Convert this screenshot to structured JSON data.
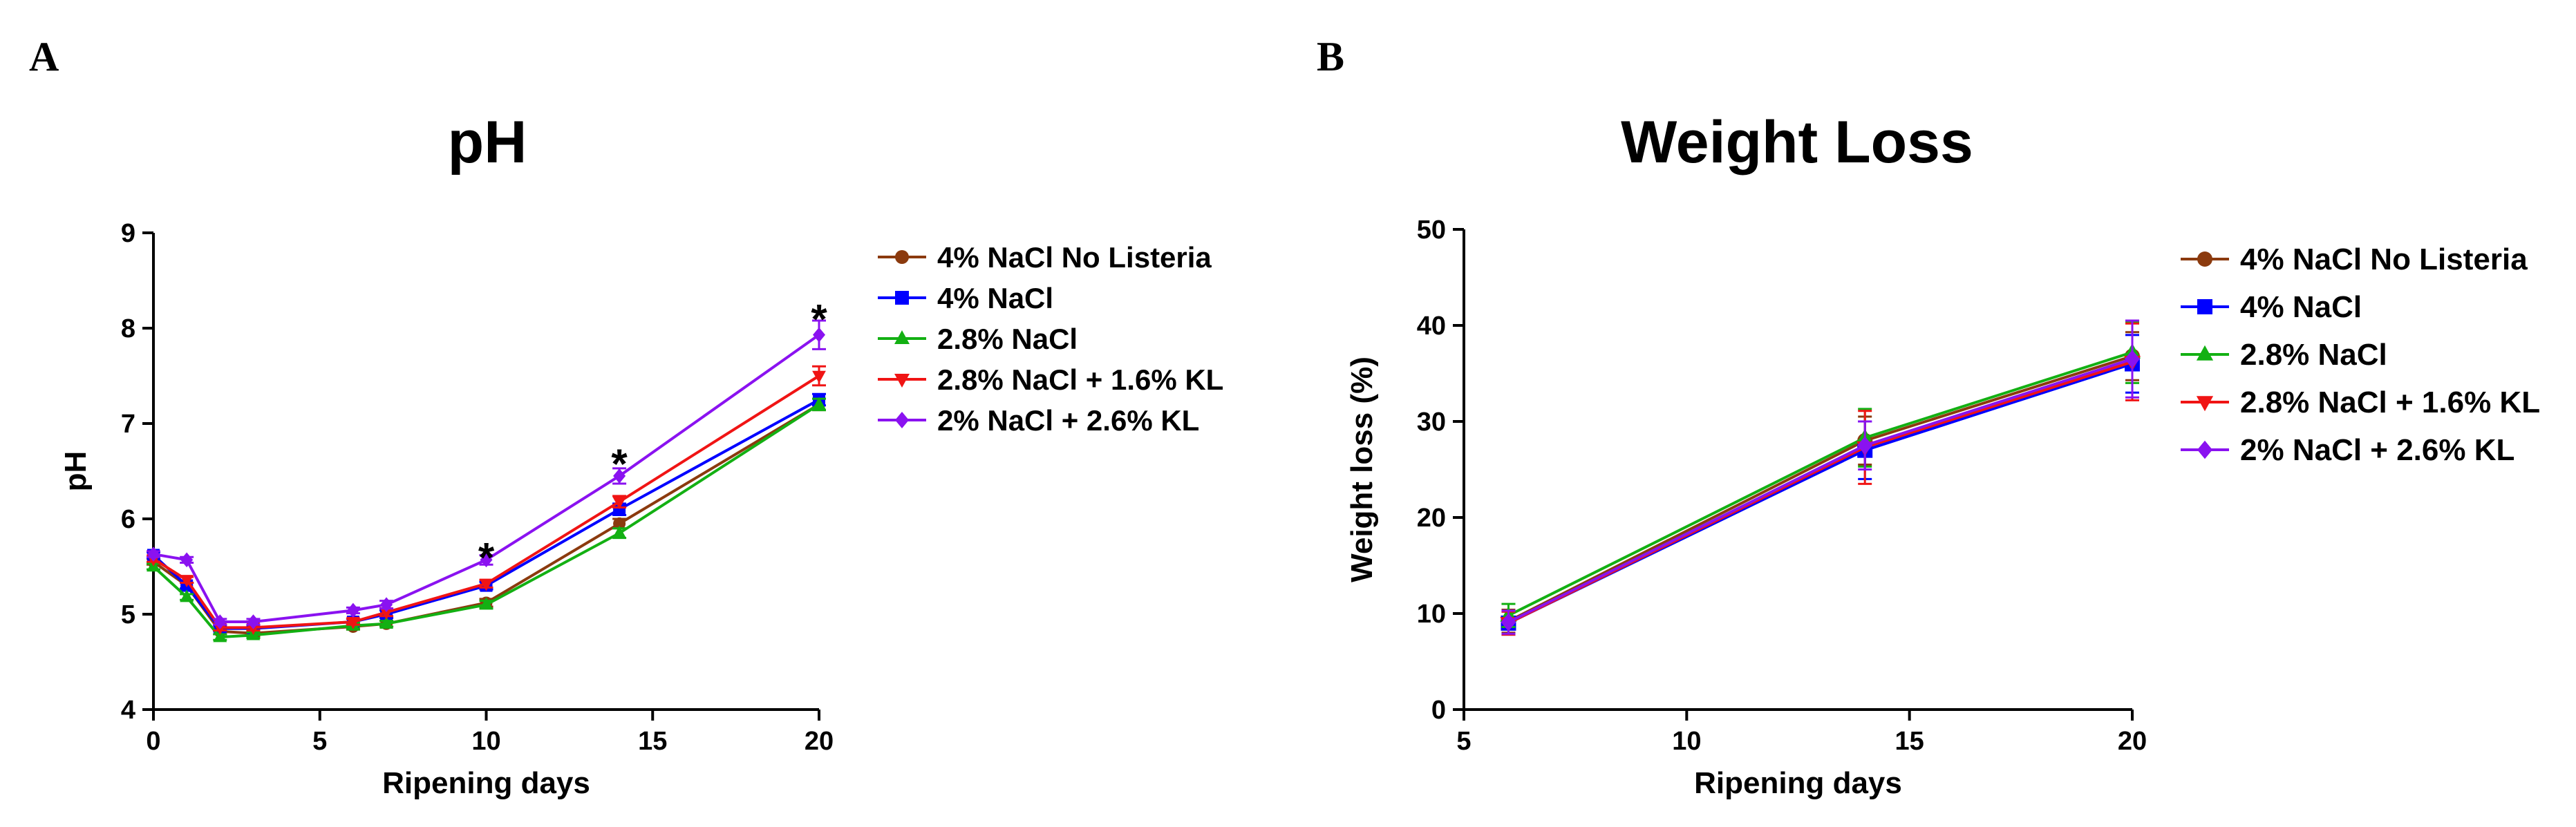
{
  "panels": {
    "a": "A",
    "b": "B"
  },
  "chart_data": [
    {
      "type": "line",
      "title": "pH",
      "xlabel": "Ripening days",
      "ylabel": "pH",
      "xlim": [
        0,
        20
      ],
      "ylim": [
        4,
        9
      ],
      "xticks": [
        0,
        5,
        10,
        15,
        20
      ],
      "yticks": [
        4,
        5,
        6,
        7,
        8,
        9
      ],
      "legend_position": "right",
      "annotations": [
        {
          "text": "*",
          "x": 10,
          "y": 5.62
        },
        {
          "text": "*",
          "x": 14,
          "y": 6.6
        },
        {
          "text": "*",
          "x": 20,
          "y": 8.12
        }
      ],
      "series": [
        {
          "name": "4% NaCl No Listeria",
          "color": "#8B3A0E",
          "marker": "circle",
          "x": [
            0,
            1,
            2,
            3,
            6,
            7,
            10,
            14,
            20
          ],
          "values": [
            5.55,
            5.3,
            4.82,
            4.8,
            4.87,
            4.9,
            5.12,
            5.95,
            7.2
          ],
          "errors": [
            0.03,
            0.03,
            0.03,
            0.03,
            0.03,
            0.03,
            0.04,
            0.05,
            0.06
          ]
        },
        {
          "name": "4% NaCl",
          "color": "#0000FF",
          "marker": "square",
          "x": [
            0,
            1,
            2,
            3,
            6,
            7,
            10,
            14,
            20
          ],
          "values": [
            5.62,
            5.3,
            4.85,
            4.85,
            4.92,
            5.0,
            5.3,
            6.1,
            7.25
          ],
          "errors": [
            0.03,
            0.03,
            0.03,
            0.03,
            0.03,
            0.04,
            0.04,
            0.06,
            0.06
          ]
        },
        {
          "name": "2.8% NaCl",
          "color": "#13B013",
          "marker": "triangle-up",
          "x": [
            0,
            1,
            2,
            3,
            6,
            7,
            10,
            14,
            20
          ],
          "values": [
            5.5,
            5.18,
            4.76,
            4.78,
            4.88,
            4.9,
            5.1,
            5.85,
            7.2
          ],
          "errors": [
            0.03,
            0.03,
            0.03,
            0.03,
            0.03,
            0.03,
            0.04,
            0.05,
            0.06
          ]
        },
        {
          "name": "2.8% NaCl + 1.6% KL",
          "color": "#F01414",
          "marker": "triangle-down",
          "x": [
            0,
            1,
            2,
            3,
            6,
            7,
            10,
            14,
            20
          ],
          "values": [
            5.58,
            5.36,
            4.86,
            4.86,
            4.92,
            5.02,
            5.32,
            6.18,
            7.5
          ],
          "errors": [
            0.03,
            0.03,
            0.03,
            0.03,
            0.03,
            0.04,
            0.04,
            0.06,
            0.1
          ]
        },
        {
          "name": "2% NaCl + 2.6% KL",
          "color": "#8A12F0",
          "marker": "diamond",
          "x": [
            0,
            1,
            2,
            3,
            6,
            7,
            10,
            14,
            20
          ],
          "values": [
            5.63,
            5.57,
            4.92,
            4.92,
            5.04,
            5.1,
            5.57,
            6.45,
            7.93
          ],
          "errors": [
            0.03,
            0.03,
            0.03,
            0.03,
            0.03,
            0.04,
            0.05,
            0.08,
            0.15
          ]
        }
      ]
    },
    {
      "type": "line",
      "title": "Weight Loss",
      "xlabel": "Ripening days",
      "ylabel": "Weight loss (%)",
      "xlim": [
        5,
        20
      ],
      "ylim": [
        0,
        50
      ],
      "xticks": [
        5,
        10,
        15,
        20
      ],
      "yticks": [
        0,
        10,
        20,
        30,
        40,
        50
      ],
      "legend_position": "right",
      "series": [
        {
          "name": "4% NaCl No Listeria",
          "color": "#8B3A0E",
          "marker": "circle",
          "x": [
            6,
            14,
            20
          ],
          "values": [
            9.2,
            28.0,
            36.8
          ],
          "errors": [
            1.2,
            2.5,
            2.5
          ]
        },
        {
          "name": "4% NaCl",
          "color": "#0000FF",
          "marker": "square",
          "x": [
            6,
            14,
            20
          ],
          "values": [
            9.0,
            27.0,
            36.0
          ],
          "errors": [
            1.2,
            3.0,
            3.0
          ]
        },
        {
          "name": "2.8% NaCl",
          "color": "#13B013",
          "marker": "triangle-up",
          "x": [
            6,
            14,
            20
          ],
          "values": [
            9.8,
            28.3,
            37.2
          ],
          "errors": [
            1.2,
            3.0,
            3.2
          ]
        },
        {
          "name": "2.8% NaCl + 1.6% KL",
          "color": "#F01414",
          "marker": "triangle-down",
          "x": [
            6,
            14,
            20
          ],
          "values": [
            9.0,
            27.3,
            36.2
          ],
          "errors": [
            1.2,
            3.8,
            4.0
          ]
        },
        {
          "name": "2% NaCl + 2.6% KL",
          "color": "#8A12F0",
          "marker": "diamond",
          "x": [
            6,
            14,
            20
          ],
          "values": [
            9.1,
            27.5,
            36.5
          ],
          "errors": [
            1.2,
            2.5,
            4.0
          ]
        }
      ]
    }
  ]
}
